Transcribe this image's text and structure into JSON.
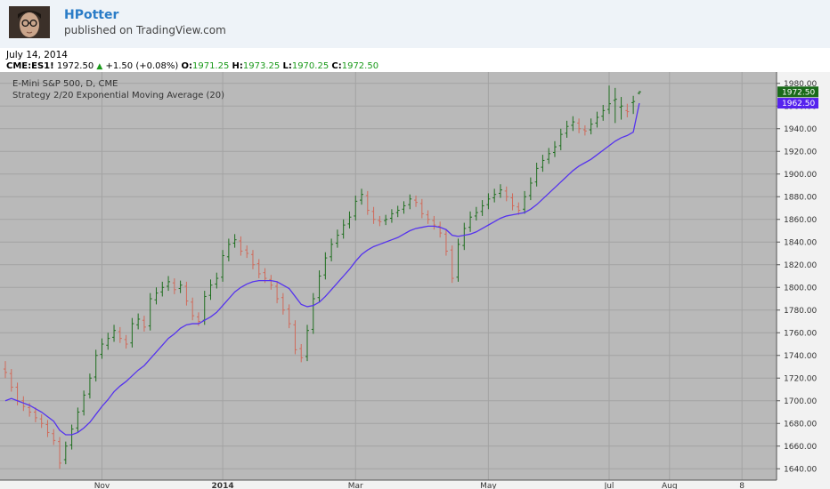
{
  "header": {
    "author": "HPotter",
    "published": "published on TradingView.com"
  },
  "quote": {
    "date": "July 14, 2014",
    "symbol": "CME:ES1!",
    "last": "1972.50",
    "change": "+1.50 (+0.08%)",
    "open_label": "O:",
    "open": "1971.25",
    "high_label": "H:",
    "high": "1973.25",
    "low_label": "L:",
    "low": "1970.25",
    "close_label": "C:",
    "close": "1972.50"
  },
  "colors": {
    "background": "#b9b9b9",
    "up": "#1e6e1e",
    "down": "#d06a5a",
    "ema": "#5533ee",
    "grid": "#a3a3a3",
    "last_tag": "#1a6a1a",
    "ema_tag": "#5522ee"
  },
  "chart_data": {
    "type": "line",
    "title": "E-Mini S&P 500, D, CME",
    "subtitle": "Strategy 2/20 Exponential Moving Average (20)",
    "xlabel": "",
    "ylabel": "",
    "ylim": [
      1630,
      1990
    ],
    "grid": true,
    "y_ticks": [
      1640,
      1660,
      1680,
      1700,
      1720,
      1740,
      1760,
      1780,
      1800,
      1820,
      1840,
      1860,
      1880,
      1900,
      1920,
      1940,
      1960,
      1980
    ],
    "x_ticks": [
      {
        "label": "Nov",
        "index": 16
      },
      {
        "label": "2014",
        "index": 36
      },
      {
        "label": "Mar",
        "index": 58
      },
      {
        "label": "May",
        "index": 80
      },
      {
        "label": "Jul",
        "index": 100
      },
      {
        "label": "Aug",
        "index": 110
      },
      {
        "label": "8",
        "index": 122
      }
    ],
    "price_tags": [
      {
        "label": "1972.50",
        "value": 1972.5,
        "color": "#1a6a1a"
      },
      {
        "label": "1962.50",
        "value": 1962.5,
        "color": "#5522ee"
      }
    ],
    "series": [
      {
        "name": "Price",
        "close": [
          1725,
          1712,
          1700,
          1695,
          1690,
          1685,
          1680,
          1672,
          1665,
          1645,
          1660,
          1675,
          1690,
          1705,
          1720,
          1740,
          1750,
          1755,
          1762,
          1755,
          1750,
          1768,
          1772,
          1765,
          1790,
          1795,
          1800,
          1805,
          1798,
          1802,
          1788,
          1775,
          1770,
          1792,
          1802,
          1808,
          1828,
          1838,
          1842,
          1832,
          1830,
          1820,
          1812,
          1808,
          1802,
          1790,
          1780,
          1768,
          1745,
          1738,
          1762,
          1790,
          1810,
          1826,
          1838,
          1846,
          1855,
          1862,
          1876,
          1882,
          1868,
          1860,
          1858,
          1860,
          1865,
          1868,
          1872,
          1878,
          1875,
          1865,
          1860,
          1855,
          1848,
          1832,
          1808,
          1838,
          1852,
          1862,
          1866,
          1872,
          1878,
          1882,
          1886,
          1880,
          1872,
          1868,
          1880,
          1892,
          1905,
          1912,
          1918,
          1924,
          1935,
          1942,
          1946,
          1940,
          1938,
          1944,
          1950,
          1956,
          1962,
          1966,
          1960,
          1955,
          1964,
          1972.5
        ],
        "open": [
          1728,
          1724,
          1712,
          1700,
          1694,
          1690,
          1684,
          1679,
          1671,
          1664,
          1648,
          1661,
          1676,
          1691,
          1706,
          1721,
          1741,
          1749,
          1756,
          1761,
          1754,
          1751,
          1767,
          1771,
          1766,
          1789,
          1796,
          1801,
          1804,
          1799,
          1801,
          1787,
          1774,
          1771,
          1793,
          1803,
          1809,
          1827,
          1839,
          1841,
          1833,
          1829,
          1821,
          1813,
          1807,
          1801,
          1791,
          1781,
          1767,
          1746,
          1739,
          1763,
          1791,
          1811,
          1827,
          1839,
          1847,
          1856,
          1863,
          1877,
          1881,
          1867,
          1859,
          1859,
          1861,
          1866,
          1869,
          1873,
          1877,
          1874,
          1864,
          1859,
          1854,
          1847,
          1833,
          1809,
          1837,
          1853,
          1863,
          1867,
          1873,
          1879,
          1883,
          1885,
          1879,
          1871,
          1869,
          1881,
          1893,
          1906,
          1913,
          1919,
          1925,
          1936,
          1943,
          1945,
          1939,
          1939,
          1945,
          1951,
          1957,
          1965,
          1959,
          1956,
          1963,
          1971.25
        ],
        "high": [
          1735,
          1728,
          1716,
          1704,
          1698,
          1694,
          1688,
          1683,
          1675,
          1668,
          1664,
          1679,
          1694,
          1709,
          1724,
          1745,
          1755,
          1760,
          1767,
          1765,
          1758,
          1773,
          1777,
          1775,
          1795,
          1800,
          1805,
          1810,
          1808,
          1806,
          1805,
          1791,
          1778,
          1797,
          1807,
          1813,
          1833,
          1843,
          1847,
          1845,
          1837,
          1833,
          1825,
          1817,
          1811,
          1805,
          1795,
          1785,
          1771,
          1750,
          1767,
          1795,
          1815,
          1831,
          1843,
          1851,
          1860,
          1867,
          1881,
          1887,
          1885,
          1871,
          1863,
          1864,
          1869,
          1872,
          1876,
          1882,
          1881,
          1878,
          1868,
          1863,
          1858,
          1851,
          1837,
          1843,
          1857,
          1867,
          1871,
          1877,
          1883,
          1887,
          1891,
          1889,
          1883,
          1875,
          1885,
          1897,
          1910,
          1917,
          1923,
          1929,
          1940,
          1947,
          1951,
          1949,
          1943,
          1949,
          1955,
          1961,
          1978,
          1976,
          1968,
          1962,
          1969,
          1973.25
        ],
        "low": [
          1720,
          1708,
          1696,
          1691,
          1686,
          1681,
          1676,
          1668,
          1661,
          1640,
          1644,
          1657,
          1672,
          1687,
          1702,
          1717,
          1737,
          1745,
          1752,
          1751,
          1746,
          1747,
          1763,
          1761,
          1762,
          1785,
          1792,
          1797,
          1794,
          1795,
          1784,
          1771,
          1766,
          1767,
          1789,
          1799,
          1805,
          1823,
          1835,
          1828,
          1826,
          1816,
          1808,
          1804,
          1798,
          1786,
          1776,
          1764,
          1741,
          1734,
          1735,
          1759,
          1787,
          1807,
          1823,
          1835,
          1843,
          1852,
          1859,
          1873,
          1864,
          1856,
          1854,
          1855,
          1857,
          1862,
          1865,
          1869,
          1871,
          1861,
          1856,
          1851,
          1844,
          1828,
          1804,
          1805,
          1833,
          1849,
          1859,
          1863,
          1869,
          1875,
          1879,
          1876,
          1868,
          1864,
          1865,
          1877,
          1889,
          1902,
          1909,
          1915,
          1921,
          1932,
          1938,
          1936,
          1934,
          1935,
          1941,
          1947,
          1953,
          1945,
          1948,
          1950,
          1953,
          1970.25
        ]
      },
      {
        "name": "EMA (20)",
        "values": [
          1700,
          1702,
          1700,
          1698,
          1696,
          1693,
          1690,
          1686,
          1682,
          1674,
          1670,
          1670,
          1672,
          1676,
          1681,
          1688,
          1695,
          1701,
          1708,
          1713,
          1717,
          1722,
          1727,
          1731,
          1737,
          1743,
          1749,
          1755,
          1759,
          1764,
          1767,
          1768,
          1768,
          1771,
          1774,
          1778,
          1784,
          1790,
          1796,
          1800,
          1803,
          1805,
          1806,
          1806,
          1806,
          1805,
          1802,
          1799,
          1792,
          1785,
          1783,
          1784,
          1787,
          1792,
          1798,
          1804,
          1810,
          1816,
          1823,
          1829,
          1833,
          1836,
          1838,
          1840,
          1842,
          1844,
          1847,
          1850,
          1852,
          1853,
          1854,
          1854,
          1853,
          1851,
          1846,
          1845,
          1846,
          1847,
          1849,
          1852,
          1855,
          1858,
          1861,
          1863,
          1864,
          1865,
          1866,
          1869,
          1873,
          1878,
          1883,
          1888,
          1893,
          1898,
          1903,
          1907,
          1910,
          1913,
          1917,
          1921,
          1925,
          1929,
          1932,
          1934,
          1937,
          1962.5
        ]
      }
    ]
  }
}
